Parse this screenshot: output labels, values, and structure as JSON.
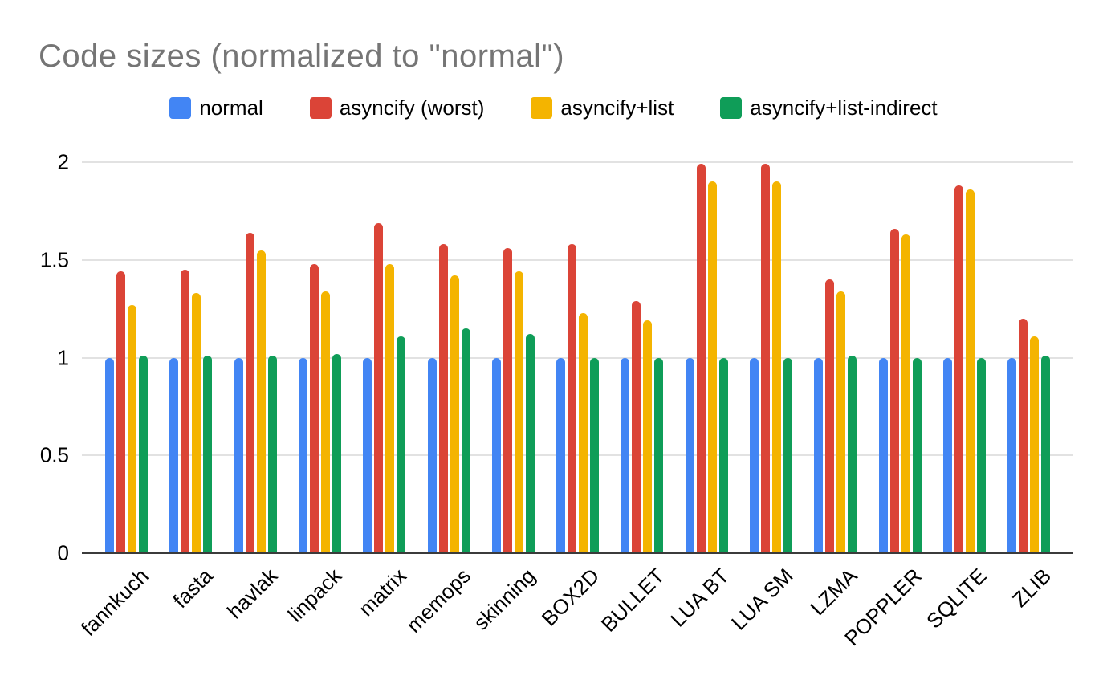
{
  "chart_data": {
    "type": "bar",
    "title": "Code sizes (normalized to \"normal\")",
    "xlabel": "",
    "ylabel": "",
    "ylim": [
      0,
      2
    ],
    "y_ticks": [
      "0",
      "0.5",
      "1",
      "1.5",
      "2"
    ],
    "grid": true,
    "legend_position": "top",
    "title_color": "#757575",
    "categories": [
      "fannkuch",
      "fasta",
      "havlak",
      "linpack",
      "matrix",
      "memops",
      "skinning",
      "BOX2D",
      "BULLET",
      "LUA BT",
      "LUA SM",
      "LZMA",
      "POPPLER",
      "SQLITE",
      "ZLIB"
    ],
    "series": [
      {
        "name": "normal",
        "color": "#4285F4",
        "values": [
          1.0,
          1.0,
          1.0,
          1.0,
          1.0,
          1.0,
          1.0,
          1.0,
          1.0,
          1.0,
          1.0,
          1.0,
          1.0,
          1.0,
          1.0
        ]
      },
      {
        "name": "asyncify (worst)",
        "color": "#DB4437",
        "values": [
          1.44,
          1.45,
          1.64,
          1.48,
          1.69,
          1.58,
          1.56,
          1.58,
          1.29,
          1.99,
          1.99,
          1.4,
          1.66,
          1.88,
          1.2
        ]
      },
      {
        "name": "asyncify+list",
        "color": "#F4B400",
        "values": [
          1.27,
          1.33,
          1.55,
          1.34,
          1.48,
          1.42,
          1.44,
          1.23,
          1.19,
          1.9,
          1.9,
          1.34,
          1.63,
          1.86,
          1.11
        ]
      },
      {
        "name": "asyncify+list-indirect",
        "color": "#0F9D58",
        "values": [
          1.01,
          1.01,
          1.01,
          1.02,
          1.11,
          1.15,
          1.12,
          1.0,
          1.0,
          1.0,
          1.0,
          1.01,
          1.0,
          1.0,
          1.01
        ]
      }
    ]
  }
}
